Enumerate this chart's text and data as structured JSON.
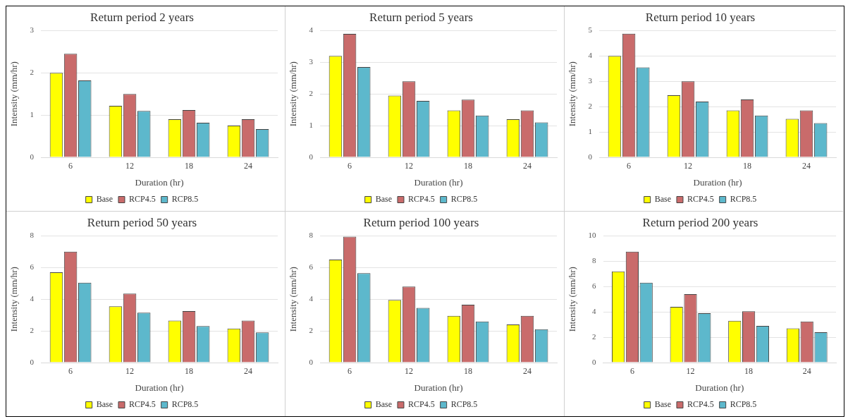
{
  "chart_data": [
    {
      "type": "bar",
      "title": "Return period 2 years",
      "xlabel": "Duration (hr)",
      "ylabel": "Intensity (mm/hr)",
      "categories": [
        "6",
        "12",
        "18",
        "24"
      ],
      "ylim": [
        0,
        3
      ],
      "yticks": [
        0,
        1,
        2,
        3
      ],
      "grid": "y",
      "legend": "bottom",
      "series": [
        {
          "name": "Base",
          "color": "#ffff00",
          "values": [
            2.0,
            1.22,
            0.9,
            0.75
          ]
        },
        {
          "name": "RCP4.5",
          "color": "#c96b6b",
          "values": [
            2.45,
            1.5,
            1.12,
            0.9
          ]
        },
        {
          "name": "RCP8.5",
          "color": "#5db8cc",
          "values": [
            1.82,
            1.1,
            0.82,
            0.67
          ]
        }
      ]
    },
    {
      "type": "bar",
      "title": "Return period 5 years",
      "xlabel": "Duration (hr)",
      "ylabel": "Intensity (mm/hr)",
      "categories": [
        "6",
        "12",
        "18",
        "24"
      ],
      "ylim": [
        0,
        4
      ],
      "yticks": [
        0,
        1,
        2,
        3,
        4
      ],
      "grid": "y",
      "legend": "bottom",
      "series": [
        {
          "name": "Base",
          "color": "#ffff00",
          "values": [
            3.2,
            1.95,
            1.48,
            1.2
          ]
        },
        {
          "name": "RCP4.5",
          "color": "#c96b6b",
          "values": [
            3.9,
            2.4,
            1.82,
            1.48
          ]
        },
        {
          "name": "RCP8.5",
          "color": "#5db8cc",
          "values": [
            2.85,
            1.78,
            1.32,
            1.1
          ]
        }
      ]
    },
    {
      "type": "bar",
      "title": "Return period 10 years",
      "xlabel": "Duration (hr)",
      "ylabel": "Intensity (mm/hr)",
      "categories": [
        "6",
        "12",
        "18",
        "24"
      ],
      "ylim": [
        0,
        5
      ],
      "yticks": [
        0,
        1,
        2,
        3,
        4,
        5
      ],
      "grid": "y",
      "legend": "bottom",
      "series": [
        {
          "name": "Base",
          "color": "#ffff00",
          "values": [
            4.0,
            2.45,
            1.85,
            1.52
          ]
        },
        {
          "name": "RCP4.5",
          "color": "#c96b6b",
          "values": [
            4.88,
            3.0,
            2.28,
            1.85
          ]
        },
        {
          "name": "RCP8.5",
          "color": "#5db8cc",
          "values": [
            3.55,
            2.2,
            1.65,
            1.35
          ]
        }
      ]
    },
    {
      "type": "bar",
      "title": "Return period 50 years",
      "xlabel": "Duration (hr)",
      "ylabel": "Intensity (mm/hr)",
      "categories": [
        "6",
        "12",
        "18",
        "24"
      ],
      "ylim": [
        0,
        8
      ],
      "yticks": [
        0,
        2,
        4,
        6,
        8
      ],
      "grid": "y",
      "legend": "bottom",
      "series": [
        {
          "name": "Base",
          "color": "#ffff00",
          "values": [
            5.7,
            3.55,
            2.65,
            2.15
          ]
        },
        {
          "name": "RCP4.5",
          "color": "#c96b6b",
          "values": [
            7.0,
            4.35,
            3.25,
            2.65
          ]
        },
        {
          "name": "RCP8.5",
          "color": "#5db8cc",
          "values": [
            5.05,
            3.15,
            2.3,
            1.9
          ]
        }
      ]
    },
    {
      "type": "bar",
      "title": "Return period 100 years",
      "xlabel": "Duration (hr)",
      "ylabel": "Intensity (mm/hr)",
      "categories": [
        "6",
        "12",
        "18",
        "24"
      ],
      "ylim": [
        0,
        8
      ],
      "yticks": [
        0,
        2,
        4,
        6,
        8
      ],
      "grid": "y",
      "legend": "bottom",
      "series": [
        {
          "name": "Base",
          "color": "#ffff00",
          "values": [
            6.5,
            3.95,
            2.95,
            2.4
          ]
        },
        {
          "name": "RCP4.5",
          "color": "#c96b6b",
          "values": [
            7.95,
            4.8,
            3.65,
            2.95
          ]
        },
        {
          "name": "RCP8.5",
          "color": "#5db8cc",
          "values": [
            5.65,
            3.45,
            2.6,
            2.1
          ]
        }
      ]
    },
    {
      "type": "bar",
      "title": "Return period 200 years",
      "xlabel": "Duration (hr)",
      "ylabel": "Intensity (mm/hr)",
      "categories": [
        "6",
        "12",
        "18",
        "24"
      ],
      "ylim": [
        0,
        10
      ],
      "yticks": [
        0,
        2,
        4,
        6,
        8,
        10
      ],
      "grid": "y",
      "legend": "bottom",
      "series": [
        {
          "name": "Base",
          "color": "#ffff00",
          "values": [
            7.2,
            4.4,
            3.3,
            2.7
          ]
        },
        {
          "name": "RCP4.5",
          "color": "#c96b6b",
          "values": [
            8.75,
            5.4,
            4.05,
            3.25
          ]
        },
        {
          "name": "RCP8.5",
          "color": "#5db8cc",
          "values": [
            6.3,
            3.9,
            2.9,
            2.4
          ]
        }
      ]
    }
  ]
}
